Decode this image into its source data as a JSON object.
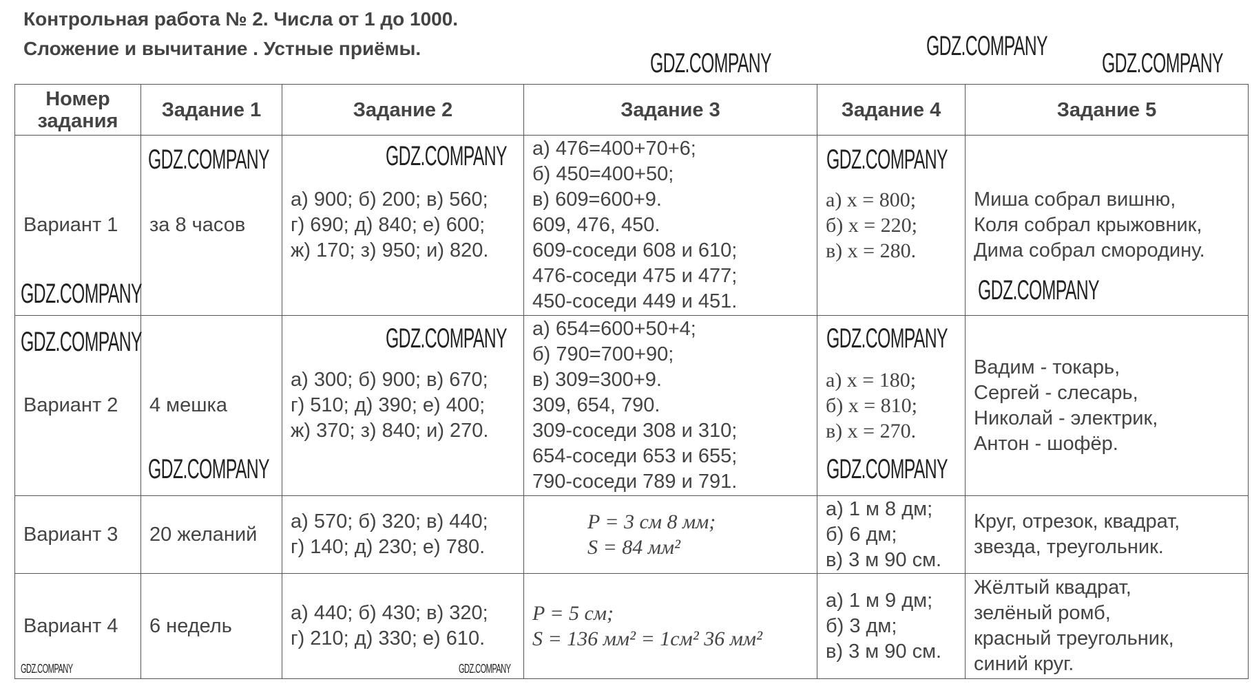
{
  "title_line1": "Контрольная работа № 2. Числа от 1 до 1000.",
  "title_line2": "Сложение и вычитание . Устные приёмы.",
  "watermark": "GDZ.COMPANY",
  "headers": [
    "Номер задания",
    "Задание 1",
    "Задание 2",
    "Задание 3",
    "Задание 4",
    "Задание 5"
  ],
  "rows": [
    {
      "variant": "Вариант 1",
      "task1": "за 8 часов",
      "task2": [
        "а) 900; б) 200; в) 560;",
        "г) 690; д) 840; е) 600;",
        "ж) 170; з) 950; и) 820."
      ],
      "task3": [
        "а) 476=400+70+6;",
        "б) 450=400+50;",
        "в) 609=600+9.",
        "609, 476, 450.",
        "609-соседи 608 и 610;",
        "476-соседи 475 и 477;",
        "450-соседи 449 и 451."
      ],
      "task4": [
        "а) x = 800;",
        "б) x = 220;",
        "в) x = 280."
      ],
      "task5": [
        "Миша собрал вишню,",
        "Коля собрал крыжовник,",
        "Дима собрал смородину."
      ]
    },
    {
      "variant": "Вариант 2",
      "task1": "4 мешка",
      "task2": [
        "а) 300; б) 900; в) 670;",
        "г) 510; д) 390; е) 400;",
        "ж) 370; з) 840; и) 270."
      ],
      "task3": [
        "а) 654=600+50+4;",
        "б) 790=700+90;",
        "в) 309=300+9.",
        "309, 654, 790.",
        "309-соседи 308 и 310;",
        "654-соседи 653 и 655;",
        "790-соседи 789 и 791."
      ],
      "task4": [
        "а) x = 180;",
        "б) x = 810;",
        "в) x = 270."
      ],
      "task5": [
        "Вадим - токарь,",
        "Сергей - слесарь,",
        "Николай - электрик,",
        "Антон - шофёр."
      ]
    },
    {
      "variant": "Вариант 3",
      "task1": "20 желаний",
      "task2": [
        "а) 570; б) 320; в) 440;",
        "г) 140; д) 230; е) 780."
      ],
      "task3": [
        "P = 3 см 8 мм;",
        "S = 84 мм²"
      ],
      "task4": [
        "а) 1 м 8 дм;",
        "б) 6 дм;",
        "в) 3 м 90 см."
      ],
      "task5": [
        "Круг, отрезок, квадрат,",
        "звезда, треугольник."
      ]
    },
    {
      "variant": "Вариант 4",
      "task1": "6 недель",
      "task2": [
        "а) 440; б) 430; в) 320;",
        "г) 210; д) 330; е) 610."
      ],
      "task3": [
        "P = 5 см;",
        "S = 136 мм² = 1см² 36 мм²"
      ],
      "task4": [
        "а) 1 м 9 дм;",
        "б) 3 дм;",
        "в) 3 м 90 см."
      ],
      "task5": [
        "Жёлтый квадрат,",
        "зелёный ромб,",
        "красный треугольник,",
        "синий круг."
      ]
    }
  ]
}
